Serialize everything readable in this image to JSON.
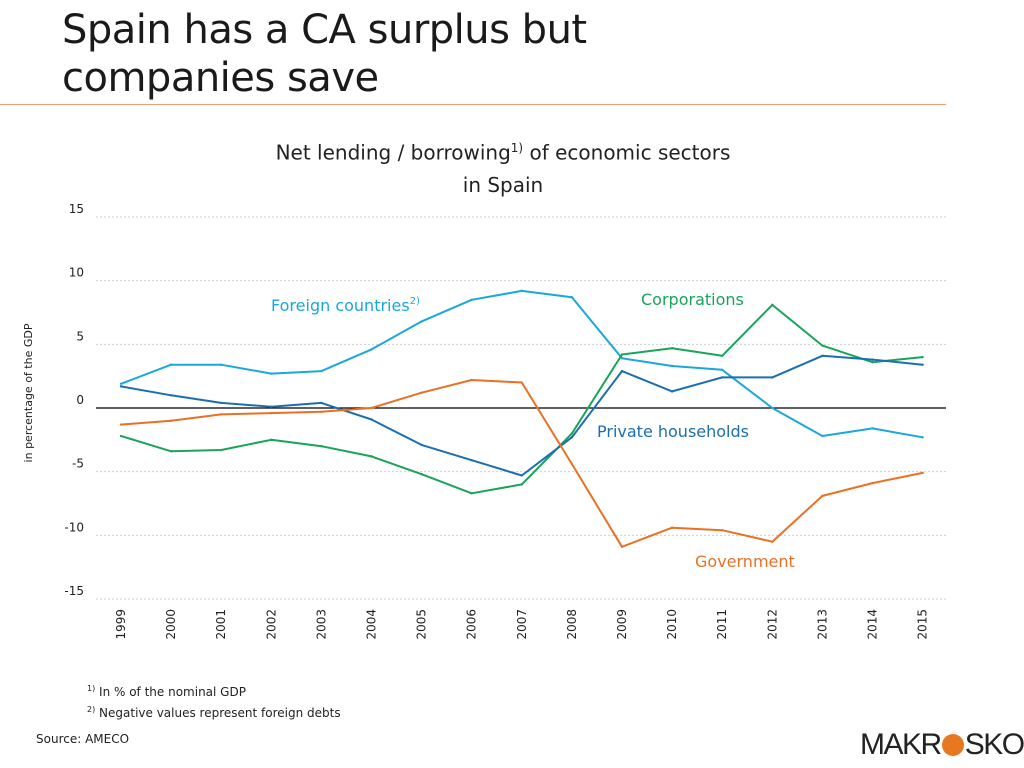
{
  "slide_title": "Spain has a CA surplus but companies save",
  "chart_title": {
    "line1_prefix": "Net lending / borrowing",
    "line1_sup": "1)",
    "line1_suffix": " of economic sectors",
    "line2": "in Spain"
  },
  "footnotes": [
    {
      "mark": "1)",
      "text": " In % of the nominal GDP"
    },
    {
      "mark": "2)",
      "text": " Negative values represent foreign debts"
    }
  ],
  "source": "Source: AMECO",
  "logo": {
    "left": "MAKR",
    "right": "SKOP",
    "mark_color": "#e87722"
  },
  "chart_data": {
    "type": "line",
    "title": "Net lending / borrowing1) of economic sectors in Spain",
    "ylabel": "in percentage of the GDP",
    "xlabel": "",
    "ylim": [
      -15,
      15
    ],
    "yticks": [
      15,
      10,
      5,
      0,
      -5,
      -10,
      -15
    ],
    "grid": true,
    "legend": "inline labels",
    "categories": [
      "1999",
      "2000",
      "2001",
      "2002",
      "2003",
      "2004",
      "2005",
      "2006",
      "2007",
      "2008",
      "2009",
      "2010",
      "2011",
      "2012",
      "2013",
      "2014",
      "2015"
    ],
    "series": [
      {
        "name": "Foreign countries",
        "label_sup": "2)",
        "color": "#1aa7dc",
        "values": [
          1.9,
          3.4,
          3.4,
          2.7,
          2.9,
          4.6,
          6.8,
          8.5,
          9.2,
          8.7,
          3.9,
          3.3,
          3.0,
          0.0,
          -2.2,
          -1.6,
          -2.3
        ]
      },
      {
        "name": "Corporations",
        "label_sup": "",
        "color": "#1aa35a",
        "values": [
          -2.2,
          -3.4,
          -3.3,
          -2.5,
          -3.0,
          -3.8,
          -5.2,
          -6.7,
          -6.0,
          -2.0,
          4.2,
          4.7,
          4.1,
          8.1,
          4.9,
          3.6,
          4.0
        ]
      },
      {
        "name": "Private households",
        "label_sup": "",
        "color": "#1b6fb0",
        "values": [
          1.7,
          1.0,
          0.4,
          0.1,
          0.4,
          -0.9,
          -2.9,
          -4.1,
          -5.3,
          -2.3,
          2.9,
          1.3,
          2.4,
          2.4,
          4.1,
          3.8,
          3.4
        ]
      },
      {
        "name": "Government",
        "label_sup": "",
        "color": "#ea7024",
        "values": [
          -1.3,
          -1.0,
          -0.5,
          -0.4,
          -0.3,
          0.0,
          1.2,
          2.2,
          2.0,
          -4.4,
          -10.9,
          -9.4,
          -9.6,
          -10.5,
          -6.9,
          -5.9,
          -5.1
        ]
      }
    ]
  }
}
